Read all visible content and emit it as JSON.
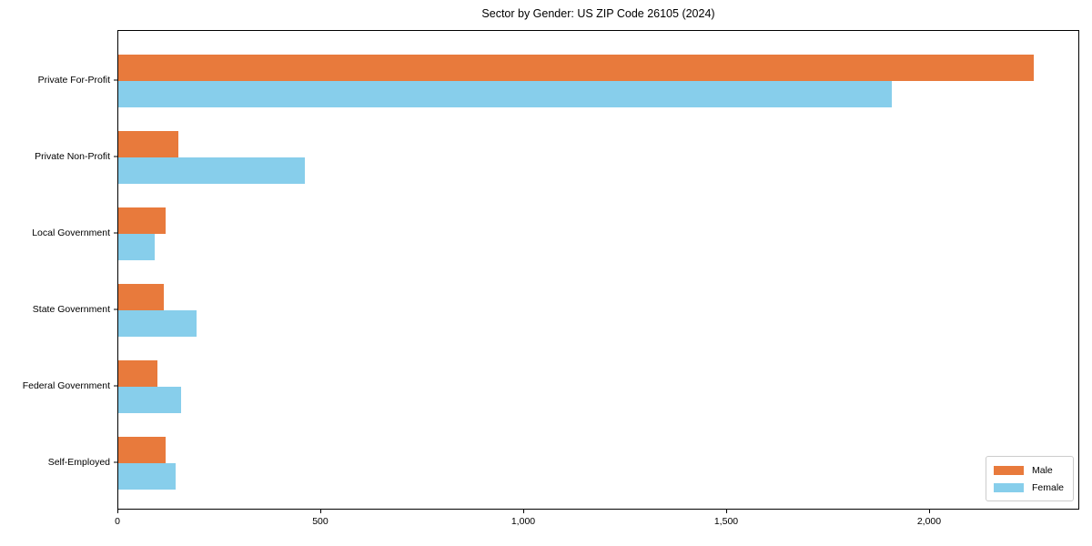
{
  "chart_data": {
    "type": "bar",
    "orientation": "horizontal",
    "title": "Sector by Gender: US ZIP Code 26105 (2024)",
    "categories": [
      "Private For-Profit",
      "Private Non-Profit",
      "Local Government",
      "State Government",
      "Federal Government",
      "Self-Employed"
    ],
    "series": [
      {
        "name": "Male",
        "color": "#e87a3c",
        "values": [
          2255,
          147,
          117,
          112,
          97,
          117
        ]
      },
      {
        "name": "Female",
        "color": "#87ceeb",
        "values": [
          1905,
          460,
          89,
          193,
          154,
          142
        ]
      }
    ],
    "xlabel": "",
    "ylabel": "",
    "xlim": [
      0,
      2370
    ],
    "xticks": [
      0,
      500,
      1000,
      1500,
      2000
    ],
    "xtick_labels": [
      "0",
      "500",
      "1,000",
      "1,500",
      "2,000"
    ],
    "legend": {
      "position": "lower-right",
      "entries": [
        "Male",
        "Female"
      ]
    },
    "grid": false,
    "axis_color": "#000000",
    "background": "#ffffff"
  }
}
